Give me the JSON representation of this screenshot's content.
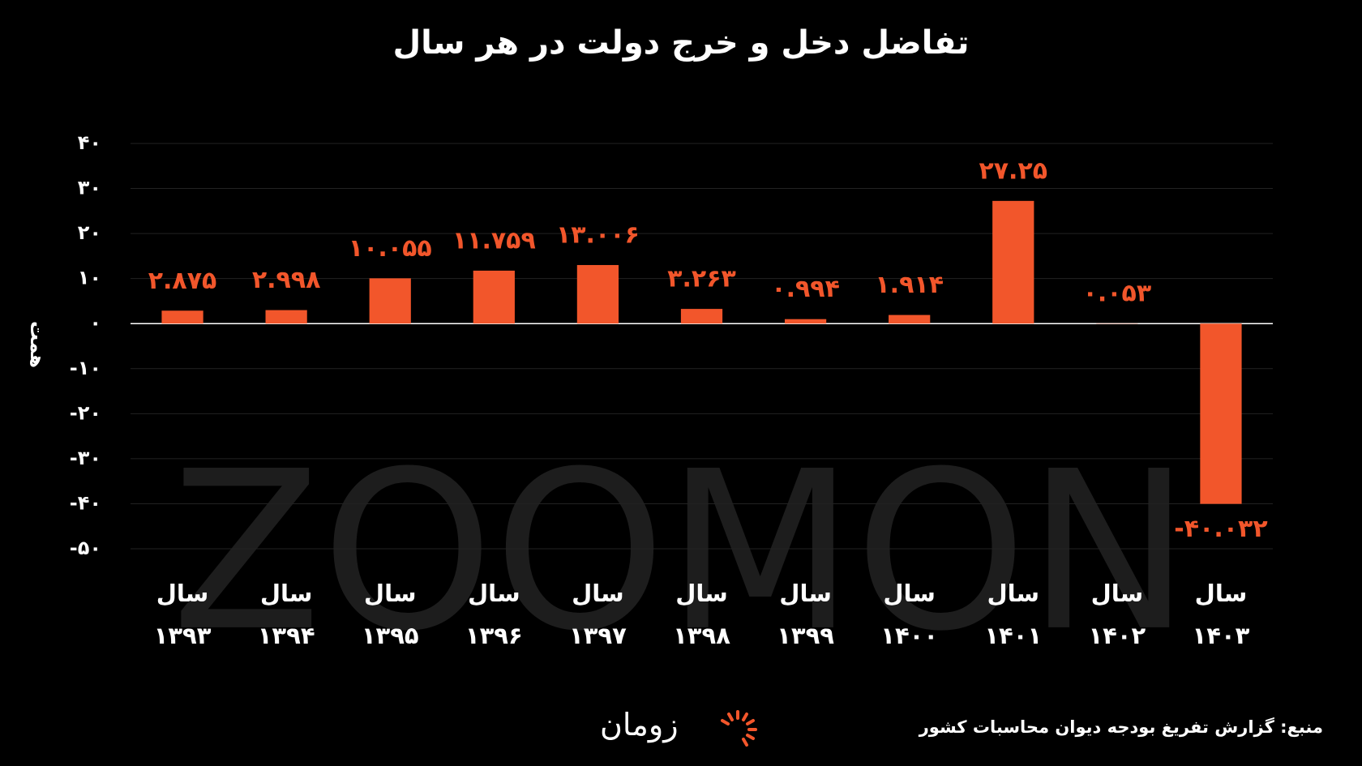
{
  "chart_data": {
    "type": "bar",
    "title": "تفاضل دخل و خرج دولت در هر سال",
    "y_label": "همت",
    "watermark": "ZOOMON",
    "source": "منبع: گزارش تفریغ بودجه دیوان محاسبات کشور",
    "logo": "زومان",
    "categories": [
      "سال ۱۳۹۳",
      "سال ۱۳۹۴",
      "سال ۱۳۹۵",
      "سال ۱۳۹۶",
      "سال ۱۳۹۷",
      "سال ۱۳۹۸",
      "سال ۱۳۹۹",
      "سال ۱۴۰۰",
      "سال ۱۴۰۱",
      "سال ۱۴۰۲",
      "سال ۱۴۰۳"
    ],
    "values": [
      2.875,
      2.998,
      10.055,
      11.759,
      13.006,
      3.263,
      0.994,
      1.914,
      27.25,
      0.053,
      -40.032
    ],
    "value_labels": [
      "۲.۸۷۵",
      "۲.۹۹۸",
      "۱۰.۰۵۵",
      "۱۱.۷۵۹",
      "۱۳.۰۰۶",
      "۳.۲۶۳",
      "۰.۹۹۴",
      "۱.۹۱۴",
      "۲۷.۲۵",
      "۰.۰۵۳",
      "-۴۰.۰۳۲"
    ],
    "color": "#f2562b",
    "ylim": [
      -50,
      40
    ],
    "yticks": [
      {
        "value": 40,
        "label": "۴۰"
      },
      {
        "value": 30,
        "label": "۳۰"
      },
      {
        "value": 20,
        "label": "۲۰"
      },
      {
        "value": 10,
        "label": "۱۰"
      },
      {
        "value": 0,
        "label": "۰"
      },
      {
        "value": -10,
        "label": "-۱۰"
      },
      {
        "value": -20,
        "label": "-۲۰"
      },
      {
        "value": -30,
        "label": "-۳۰"
      },
      {
        "value": -40,
        "label": "-۴۰"
      },
      {
        "value": -50,
        "label": "-۵۰"
      }
    ],
    "grid": true
  }
}
